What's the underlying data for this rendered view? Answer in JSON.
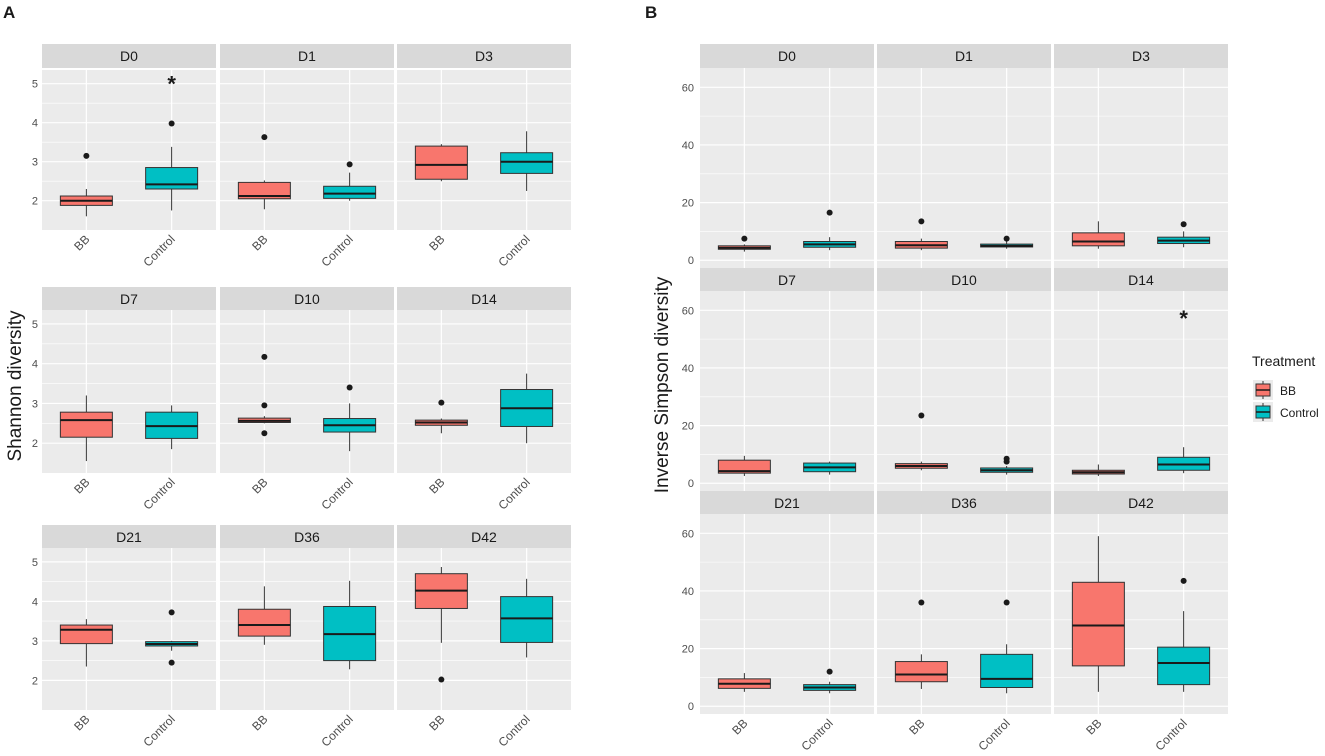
{
  "colors": {
    "bb": "#F8766D",
    "control": "#00BFC4",
    "panel_bg": "#EBEBEB",
    "strip_bg": "#D9D9D9",
    "grid": "#FFFFFF",
    "tick_text": "#4D4D4D",
    "text": "#1A1A1A"
  },
  "legend": {
    "title": "Treatment",
    "items": [
      {
        "label": "BB",
        "color_key": "bb"
      },
      {
        "label": "Control",
        "color_key": "control"
      }
    ]
  },
  "chart_data": [
    {
      "type": "box",
      "figure_label": "A",
      "ylabel": "Shannon diversity",
      "ylim": [
        1.3,
        5.3
      ],
      "yticks": [
        2,
        3,
        4,
        5
      ],
      "yticks_visible": true,
      "categories": [
        "BB",
        "Control"
      ],
      "panels": [
        {
          "label": "D0",
          "significance": "*",
          "boxes": [
            {
              "group": "BB",
              "whisker_low": 1.6,
              "q1": 1.88,
              "median": 2.0,
              "q3": 2.12,
              "whisker_high": 2.3,
              "outliers": [
                3.15
              ]
            },
            {
              "group": "Control",
              "whisker_low": 1.75,
              "q1": 2.3,
              "median": 2.42,
              "q3": 2.85,
              "whisker_high": 3.38,
              "outliers": [
                3.98
              ]
            }
          ]
        },
        {
          "label": "D1",
          "significance": "",
          "boxes": [
            {
              "group": "BB",
              "whisker_low": 1.78,
              "q1": 2.05,
              "median": 2.12,
              "q3": 2.47,
              "whisker_high": 2.52,
              "outliers": [
                3.63
              ]
            },
            {
              "group": "Control",
              "whisker_low": 2.0,
              "q1": 2.06,
              "median": 2.18,
              "q3": 2.37,
              "whisker_high": 2.72,
              "outliers": [
                2.93
              ]
            }
          ]
        },
        {
          "label": "D3",
          "significance": "",
          "boxes": [
            {
              "group": "BB",
              "whisker_low": 2.5,
              "q1": 2.55,
              "median": 2.92,
              "q3": 3.4,
              "whisker_high": 3.45,
              "outliers": []
            },
            {
              "group": "Control",
              "whisker_low": 2.25,
              "q1": 2.7,
              "median": 3.0,
              "q3": 3.23,
              "whisker_high": 3.78,
              "outliers": []
            }
          ]
        },
        {
          "label": "D7",
          "significance": "",
          "boxes": [
            {
              "group": "BB",
              "whisker_low": 1.55,
              "q1": 2.15,
              "median": 2.58,
              "q3": 2.78,
              "whisker_high": 3.2,
              "outliers": []
            },
            {
              "group": "Control",
              "whisker_low": 1.85,
              "q1": 2.12,
              "median": 2.43,
              "q3": 2.78,
              "whisker_high": 2.95,
              "outliers": []
            }
          ]
        },
        {
          "label": "D10",
          "significance": "",
          "boxes": [
            {
              "group": "BB",
              "whisker_low": 2.5,
              "q1": 2.52,
              "median": 2.56,
              "q3": 2.63,
              "whisker_high": 2.68,
              "outliers": [
                4.17,
                2.95,
                2.25
              ]
            },
            {
              "group": "Control",
              "whisker_low": 1.8,
              "q1": 2.28,
              "median": 2.45,
              "q3": 2.62,
              "whisker_high": 3.0,
              "outliers": [
                3.4
              ]
            }
          ]
        },
        {
          "label": "D14",
          "significance": "",
          "boxes": [
            {
              "group": "BB",
              "whisker_low": 2.25,
              "q1": 2.45,
              "median": 2.52,
              "q3": 2.58,
              "whisker_high": 2.62,
              "outliers": [
                3.02
              ]
            },
            {
              "group": "Control",
              "whisker_low": 2.0,
              "q1": 2.42,
              "median": 2.88,
              "q3": 3.35,
              "whisker_high": 3.75,
              "outliers": []
            }
          ]
        },
        {
          "label": "D21",
          "significance": "",
          "boxes": [
            {
              "group": "BB",
              "whisker_low": 2.35,
              "q1": 2.93,
              "median": 3.28,
              "q3": 3.4,
              "whisker_high": 3.55,
              "outliers": []
            },
            {
              "group": "Control",
              "whisker_low": 2.75,
              "q1": 2.87,
              "median": 2.92,
              "q3": 2.98,
              "whisker_high": 3.0,
              "outliers": [
                3.72,
                2.45
              ]
            }
          ]
        },
        {
          "label": "D36",
          "significance": "",
          "boxes": [
            {
              "group": "BB",
              "whisker_low": 2.9,
              "q1": 3.12,
              "median": 3.4,
              "q3": 3.8,
              "whisker_high": 4.38,
              "outliers": []
            },
            {
              "group": "Control",
              "whisker_low": 2.28,
              "q1": 2.5,
              "median": 3.17,
              "q3": 3.87,
              "whisker_high": 4.52,
              "outliers": []
            }
          ]
        },
        {
          "label": "D42",
          "significance": "",
          "boxes": [
            {
              "group": "BB",
              "whisker_low": 2.95,
              "q1": 3.82,
              "median": 4.27,
              "q3": 4.7,
              "whisker_high": 4.87,
              "outliers": [
                2.02
              ]
            },
            {
              "group": "Control",
              "whisker_low": 2.58,
              "q1": 2.96,
              "median": 3.57,
              "q3": 4.12,
              "whisker_high": 4.57,
              "outliers": []
            }
          ]
        }
      ]
    },
    {
      "type": "box",
      "figure_label": "B",
      "ylabel": "Inverse Simpson diversity",
      "ylim": [
        -2,
        66
      ],
      "yticks": [
        0,
        20,
        40,
        60
      ],
      "yticks_visible": true,
      "categories": [
        "BB",
        "Control"
      ],
      "panels": [
        {
          "label": "D0",
          "significance": "",
          "boxes": [
            {
              "group": "BB",
              "whisker_low": 3.0,
              "q1": 3.8,
              "median": 4.3,
              "q3": 5.0,
              "whisker_high": 5.5,
              "outliers": [
                7.5
              ]
            },
            {
              "group": "Control",
              "whisker_low": 3.5,
              "q1": 4.5,
              "median": 5.5,
              "q3": 6.5,
              "whisker_high": 8.0,
              "outliers": [
                16.5
              ]
            }
          ]
        },
        {
          "label": "D1",
          "significance": "",
          "boxes": [
            {
              "group": "BB",
              "whisker_low": 3.5,
              "q1": 4.2,
              "median": 5.2,
              "q3": 6.5,
              "whisker_high": 7.5,
              "outliers": [
                13.5
              ]
            },
            {
              "group": "Control",
              "whisker_low": 4.0,
              "q1": 4.6,
              "median": 5.0,
              "q3": 5.6,
              "whisker_high": 6.5,
              "outliers": [
                7.5
              ]
            }
          ]
        },
        {
          "label": "D3",
          "significance": "",
          "boxes": [
            {
              "group": "BB",
              "whisker_low": 4.0,
              "q1": 5.0,
              "median": 6.5,
              "q3": 9.5,
              "whisker_high": 13.5,
              "outliers": []
            },
            {
              "group": "Control",
              "whisker_low": 4.5,
              "q1": 5.8,
              "median": 6.8,
              "q3": 8.0,
              "whisker_high": 10.0,
              "outliers": [
                12.5
              ]
            }
          ]
        },
        {
          "label": "D7",
          "significance": "",
          "boxes": [
            {
              "group": "BB",
              "whisker_low": 2.5,
              "q1": 3.5,
              "median": 4.2,
              "q3": 8.0,
              "whisker_high": 9.5,
              "outliers": []
            },
            {
              "group": "Control",
              "whisker_low": 3.0,
              "q1": 4.0,
              "median": 5.5,
              "q3": 7.0,
              "whisker_high": 7.5,
              "outliers": []
            }
          ]
        },
        {
          "label": "D10",
          "significance": "",
          "boxes": [
            {
              "group": "BB",
              "whisker_low": 4.5,
              "q1": 5.2,
              "median": 6.0,
              "q3": 6.8,
              "whisker_high": 7.5,
              "outliers": [
                23.5
              ]
            },
            {
              "group": "Control",
              "whisker_low": 3.0,
              "q1": 3.8,
              "median": 4.5,
              "q3": 5.3,
              "whisker_high": 6.0,
              "outliers": [
                8.5,
                7.5
              ]
            }
          ]
        },
        {
          "label": "D14",
          "significance": "*",
          "boxes": [
            {
              "group": "BB",
              "whisker_low": 2.5,
              "q1": 3.2,
              "median": 3.8,
              "q3": 4.5,
              "whisker_high": 6.5,
              "outliers": []
            },
            {
              "group": "Control",
              "whisker_low": 3.5,
              "q1": 4.5,
              "median": 6.5,
              "q3": 9.0,
              "whisker_high": 12.5,
              "outliers": []
            }
          ]
        },
        {
          "label": "D21",
          "significance": "",
          "boxes": [
            {
              "group": "BB",
              "whisker_low": 5.0,
              "q1": 6.2,
              "median": 7.8,
              "q3": 9.5,
              "whisker_high": 11.5,
              "outliers": []
            },
            {
              "group": "Control",
              "whisker_low": 4.5,
              "q1": 5.5,
              "median": 6.5,
              "q3": 7.5,
              "whisker_high": 8.5,
              "outliers": [
                12.0
              ]
            }
          ]
        },
        {
          "label": "D36",
          "significance": "",
          "boxes": [
            {
              "group": "BB",
              "whisker_low": 6.0,
              "q1": 8.5,
              "median": 11.0,
              "q3": 15.5,
              "whisker_high": 18.0,
              "outliers": [
                36.0
              ]
            },
            {
              "group": "Control",
              "whisker_low": 4.5,
              "q1": 6.5,
              "median": 9.5,
              "q3": 18.0,
              "whisker_high": 21.5,
              "outliers": [
                36.0
              ]
            }
          ]
        },
        {
          "label": "D42",
          "significance": "",
          "boxes": [
            {
              "group": "BB",
              "whisker_low": 5.0,
              "q1": 14.0,
              "median": 28.0,
              "q3": 43.0,
              "whisker_high": 59.0,
              "outliers": []
            },
            {
              "group": "Control",
              "whisker_low": 5.0,
              "q1": 7.5,
              "median": 15.0,
              "q3": 20.5,
              "whisker_high": 33.0,
              "outliers": [
                43.5
              ]
            }
          ]
        }
      ]
    }
  ]
}
